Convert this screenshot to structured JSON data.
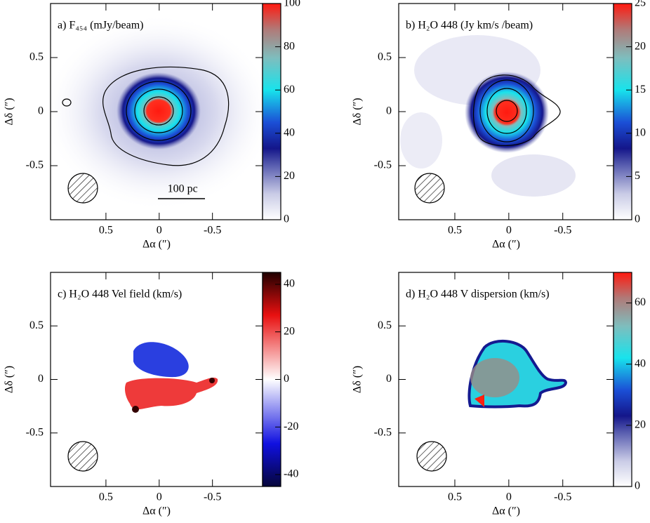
{
  "chart_data": [
    {
      "type": "heatmap",
      "title": "a) F₄₅₄ (mJy/beam)",
      "xlabel": "Δα (″)",
      "ylabel": "Δδ (″)",
      "xlim": [
        1.02,
        -0.97
      ],
      "xticks": [
        0.5,
        0,
        -0.5
      ],
      "ylim": [
        -1.0,
        1.0
      ],
      "yticks": [
        0.5,
        0,
        -0.5
      ],
      "clim": [
        0,
        100
      ],
      "cticks": [
        0,
        20,
        40,
        60,
        80,
        100
      ],
      "annotation": "100 pc"
    },
    {
      "type": "heatmap",
      "title": "b) H₂O 448 (Jy km/s /beam)",
      "xlabel": "Δα (″)",
      "ylabel": "Δδ (″)",
      "xlim": [
        1.02,
        -0.97
      ],
      "xticks": [
        0.5,
        0,
        -0.5
      ],
      "ylim": [
        -1.0,
        1.0
      ],
      "yticks": [
        0.5,
        0,
        -0.5
      ],
      "clim": [
        0,
        25
      ],
      "cticks": [
        0,
        5,
        10,
        15,
        20,
        25
      ]
    },
    {
      "type": "heatmap",
      "title": "c) H₂O 448 Vel field (km/s)",
      "xlabel": "Δα (″)",
      "ylabel": "Δδ (″)",
      "xlim": [
        1.02,
        -0.97
      ],
      "xticks": [
        0.5,
        0,
        -0.5
      ],
      "ylim": [
        -1.0,
        1.0
      ],
      "yticks": [
        0.5,
        0,
        -0.5
      ],
      "clim": [
        -45,
        45
      ],
      "cticks": [
        -40,
        -20,
        0,
        20,
        40
      ]
    },
    {
      "type": "heatmap",
      "title": "d) H₂O 448 V dispersion (km/s)",
      "xlabel": "Δα (″)",
      "ylabel": "Δδ (″)",
      "xlim": [
        1.02,
        -0.97
      ],
      "xticks": [
        0.5,
        0,
        -0.5
      ],
      "ylim": [
        -1.0,
        1.0
      ],
      "yticks": [
        0.5,
        0,
        -0.5
      ],
      "clim": [
        0,
        70
      ],
      "cticks": [
        0,
        20,
        40,
        60
      ]
    }
  ]
}
